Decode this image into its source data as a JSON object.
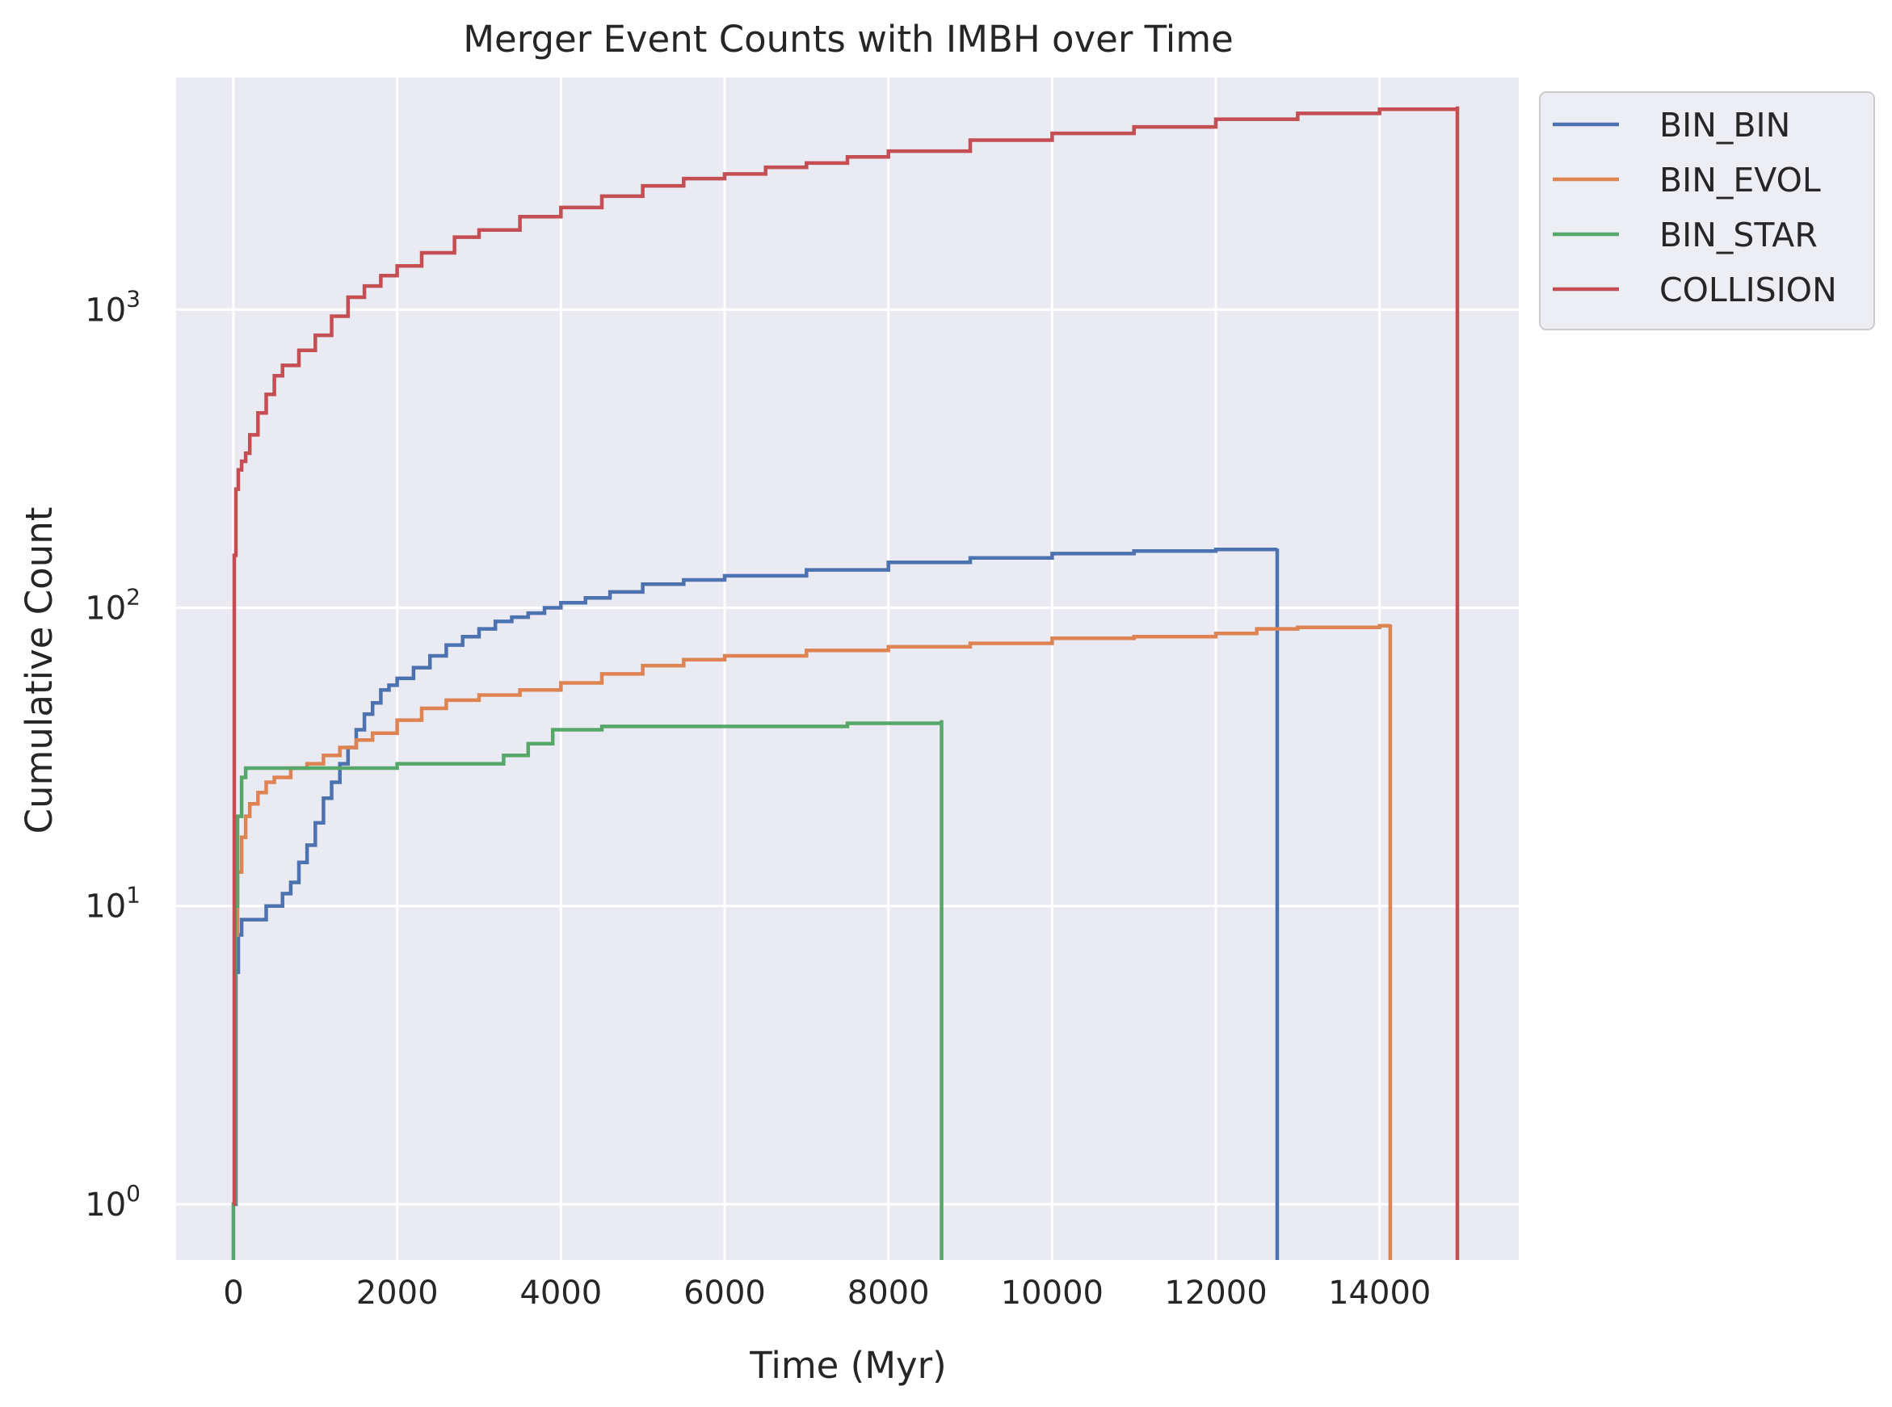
{
  "chart_data": {
    "type": "line",
    "title": "Merger Event Counts with IMBH over Time",
    "xlabel": "Time (Myr)",
    "ylabel": "Cumulative Count",
    "xscale": "linear",
    "yscale": "log",
    "xlim": [
      -700,
      15700
    ],
    "ylim": [
      0.65,
      6000
    ],
    "xticks": [
      0,
      2000,
      4000,
      6000,
      8000,
      10000,
      12000,
      14000
    ],
    "xtick_labels": [
      "0",
      "2000",
      "4000",
      "6000",
      "8000",
      "10000",
      "12000",
      "14000"
    ],
    "yticks": [
      1,
      10,
      100,
      1000
    ],
    "ytick_labels": [
      {
        "base": "10",
        "exp": "0"
      },
      {
        "base": "10",
        "exp": "1"
      },
      {
        "base": "10",
        "exp": "2"
      },
      {
        "base": "10",
        "exp": "3"
      }
    ],
    "grid": true,
    "legend_position": "outside upper right",
    "background": "#eaeaf2",
    "series": [
      {
        "name": "BIN_BIN",
        "color": "#4c72b0",
        "x": [
          0,
          30,
          60,
          100,
          200,
          400,
          600,
          700,
          800,
          900,
          1000,
          1100,
          1200,
          1300,
          1400,
          1500,
          1600,
          1700,
          1800,
          1900,
          2000,
          2200,
          2400,
          2600,
          2800,
          3000,
          3200,
          3400,
          3600,
          3800,
          4000,
          4300,
          4600,
          5000,
          5500,
          6000,
          7000,
          8000,
          9000,
          10000,
          11000,
          12000,
          12750,
          12750
        ],
        "y": [
          1,
          6,
          8,
          9,
          9,
          10,
          11,
          12,
          14,
          16,
          19,
          23,
          26,
          30,
          34,
          39,
          44,
          48,
          53,
          55,
          58,
          63,
          69,
          75,
          80,
          85,
          90,
          93,
          96,
          100,
          104,
          108,
          113,
          120,
          124,
          128,
          134,
          142,
          147,
          152,
          155,
          157,
          158,
          0.5
        ]
      },
      {
        "name": "BIN_EVOL",
        "color": "#dd8452",
        "x": [
          0,
          20,
          50,
          100,
          150,
          200,
          300,
          400,
          500,
          700,
          900,
          1100,
          1300,
          1500,
          1700,
          2000,
          2300,
          2600,
          3000,
          3500,
          4000,
          4500,
          5000,
          5500,
          6000,
          7000,
          8000,
          9000,
          10000,
          11000,
          12000,
          12500,
          13000,
          13500,
          14000,
          14130,
          14130
        ],
        "y": [
          1,
          8,
          13,
          17,
          20,
          22,
          24,
          26,
          27,
          29,
          30,
          32,
          34,
          36,
          38,
          42,
          46,
          49,
          51,
          53,
          56,
          60,
          64,
          67,
          69,
          72,
          74,
          76,
          79,
          80,
          82,
          85,
          86,
          86,
          87,
          88,
          0.5
        ]
      },
      {
        "name": "BIN_STAR",
        "color": "#55a868",
        "x": [
          0,
          0,
          20,
          50,
          100,
          150,
          1000,
          2000,
          3300,
          3600,
          3900,
          4500,
          7500,
          8650,
          8650
        ],
        "y": [
          0.5,
          1,
          10,
          20,
          27,
          29,
          29,
          30,
          32,
          35,
          39,
          40,
          41,
          42,
          0.5
        ]
      },
      {
        "name": "COLLISION",
        "color": "#c44e52",
        "x": [
          0,
          10,
          30,
          60,
          100,
          150,
          200,
          300,
          400,
          500,
          600,
          800,
          1000,
          1200,
          1400,
          1600,
          1800,
          2000,
          2300,
          2700,
          3000,
          3500,
          4000,
          4500,
          5000,
          5500,
          6000,
          6500,
          7000,
          7500,
          8000,
          9000,
          10000,
          11000,
          12000,
          13000,
          14000,
          14950,
          14950
        ],
        "y": [
          1,
          150,
          250,
          290,
          310,
          330,
          380,
          450,
          520,
          600,
          650,
          730,
          820,
          950,
          1100,
          1200,
          1300,
          1400,
          1550,
          1750,
          1850,
          2050,
          2200,
          2400,
          2600,
          2750,
          2850,
          3000,
          3100,
          3250,
          3400,
          3700,
          3900,
          4100,
          4350,
          4550,
          4700,
          4800,
          0.5
        ]
      }
    ]
  }
}
